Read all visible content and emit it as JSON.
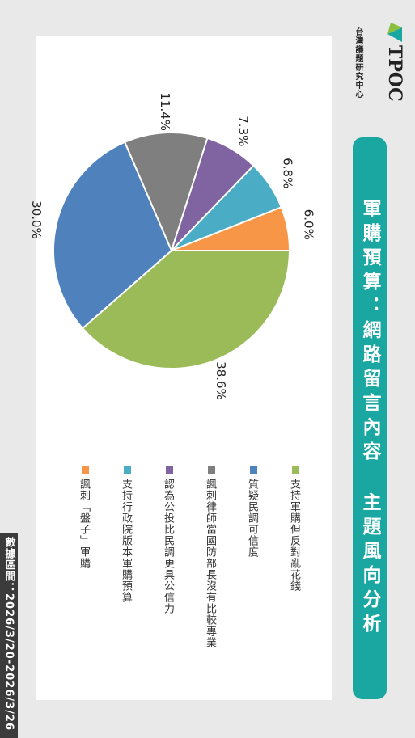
{
  "brand": {
    "logo_text": "TPOC",
    "org_name": "台灣議題研究中心",
    "accent": "#1aa7a1",
    "logo_green": "#8cbf3f"
  },
  "title": "軍購預算：網路留言內容 主題風向分析",
  "footer": "數據區間：2026/3/20-2026/3/26",
  "chart_data": {
    "type": "pie",
    "title": "",
    "slices": [
      {
        "label": "支持軍購但反對亂花錢",
        "value": 38.6,
        "value_label": "38.6%",
        "color": "#9bbb59"
      },
      {
        "label": "質疑民調可信度",
        "value": 30.0,
        "value_label": "30.0%",
        "color": "#4f81bd"
      },
      {
        "label": "諷刺律師當國防部長沒有比較專業",
        "value": 11.4,
        "value_label": "11.4%",
        "color": "#7f7f7f"
      },
      {
        "label": "認為公投比民調更具公信力",
        "value": 7.3,
        "value_label": "7.3%",
        "color": "#8064a2"
      },
      {
        "label": "支持行政院版本軍購預算",
        "value": 6.8,
        "value_label": "6.8%",
        "color": "#4bacc6"
      },
      {
        "label": "諷刺「盤子」軍購",
        "value": 6.0,
        "value_label": "6.0%",
        "color": "#f79646"
      }
    ],
    "legend_position": "bottom"
  }
}
